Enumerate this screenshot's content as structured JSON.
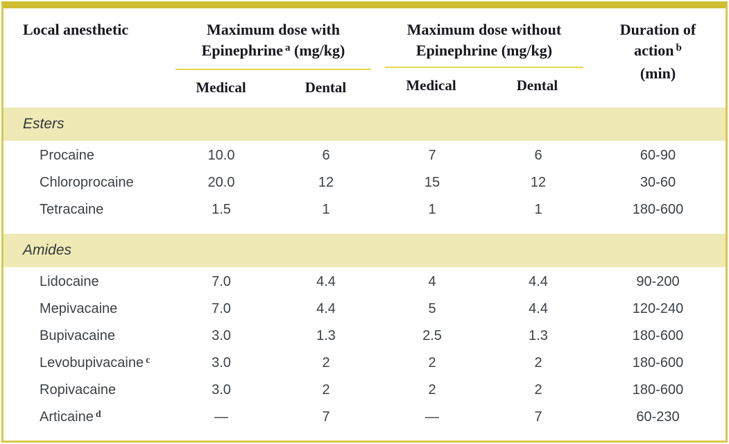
{
  "header": {
    "col1": "Local anesthetic",
    "group_with": {
      "line1": "Maximum dose with",
      "line2_word": "Epinephrine",
      "line2_sup": "a",
      "line2_unit": "(mg/kg)",
      "sub_medical": "Medical",
      "sub_dental": "Dental"
    },
    "group_without": {
      "line1": "Maximum dose without",
      "line2": "Epinephrine (mg/kg)",
      "sub_medical": "Medical",
      "sub_dental": "Dental"
    },
    "duration": {
      "line1": "Duration of",
      "line2_word": "action",
      "line2_sup": "b",
      "line3": "(min)"
    }
  },
  "sections": [
    {
      "label": "Esters",
      "rows": [
        {
          "name": "Procaine",
          "sup": "",
          "with_epi_medical": "10.0",
          "with_epi_dental": "6",
          "without_epi_medical": "7",
          "without_epi_dental": "6",
          "duration": "60-90"
        },
        {
          "name": "Chloroprocaine",
          "sup": "",
          "with_epi_medical": "20.0",
          "with_epi_dental": "12",
          "without_epi_medical": "15",
          "without_epi_dental": "12",
          "duration": "30-60"
        },
        {
          "name": "Tetracaine",
          "sup": "",
          "with_epi_medical": "1.5",
          "with_epi_dental": "1",
          "without_epi_medical": "1",
          "without_epi_dental": "1",
          "duration": "180-600"
        }
      ]
    },
    {
      "label": "Amides",
      "rows": [
        {
          "name": "Lidocaine",
          "sup": "",
          "with_epi_medical": "7.0",
          "with_epi_dental": "4.4",
          "without_epi_medical": "4",
          "without_epi_dental": "4.4",
          "duration": "90-200"
        },
        {
          "name": "Mepivacaine",
          "sup": "",
          "with_epi_medical": "7.0",
          "with_epi_dental": "4.4",
          "without_epi_medical": "5",
          "without_epi_dental": "4.4",
          "duration": "120-240"
        },
        {
          "name": "Bupivacaine",
          "sup": "",
          "with_epi_medical": "3.0",
          "with_epi_dental": "1.3",
          "without_epi_medical": "2.5",
          "without_epi_dental": "1.3",
          "duration": "180-600"
        },
        {
          "name": "Levobupivacaine",
          "sup": "c",
          "with_epi_medical": "3.0",
          "with_epi_dental": "2",
          "without_epi_medical": "2",
          "without_epi_dental": "2",
          "duration": "180-600"
        },
        {
          "name": "Ropivacaine",
          "sup": "",
          "with_epi_medical": "3.0",
          "with_epi_dental": "2",
          "without_epi_medical": "2",
          "without_epi_dental": "2",
          "duration": "180-600"
        },
        {
          "name": "Articaine",
          "sup": "d",
          "with_epi_medical": "—",
          "with_epi_dental": "7",
          "without_epi_medical": "—",
          "without_epi_dental": "7",
          "duration": "60-230"
        }
      ]
    }
  ],
  "colors": {
    "frame_top": "#d0be32",
    "frame_side": "#d8c74a",
    "section_band": "#efeab5",
    "header_underline": "#e8d64e",
    "header_text": "#17171f",
    "body_text": "#3c4147"
  }
}
